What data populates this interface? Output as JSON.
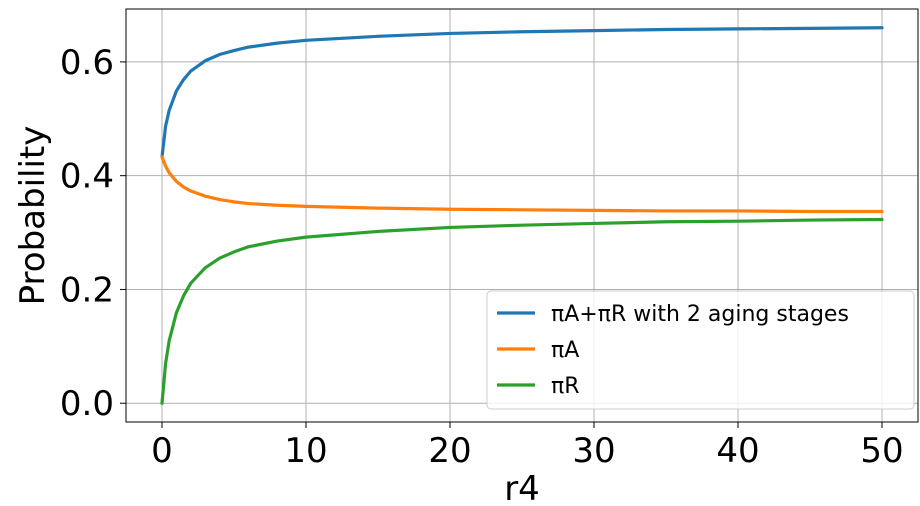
{
  "chart_data": {
    "type": "line",
    "xlabel": "r4",
    "ylabel": "Probability",
    "xlim": [
      -2.5,
      52.5
    ],
    "ylim": [
      -0.033,
      0.693
    ],
    "x_ticks": [
      0,
      10,
      20,
      30,
      40,
      50
    ],
    "x_tick_labels": [
      "0",
      "10",
      "20",
      "30",
      "40",
      "50"
    ],
    "y_ticks": [
      0.0,
      0.2,
      0.4,
      0.6
    ],
    "y_tick_labels": [
      "0.0",
      "0.2",
      "0.4",
      "0.6"
    ],
    "grid": true,
    "legend_position": "lower-right",
    "series": [
      {
        "name": "πA+πR with 2 aging stages",
        "color": "#1f77b4",
        "x": [
          0,
          0.25,
          0.5,
          1,
          1.5,
          2,
          3,
          4,
          5,
          6,
          8,
          10,
          15,
          20,
          25,
          30,
          35,
          40,
          45,
          50
        ],
        "y": [
          0.433,
          0.487,
          0.515,
          0.549,
          0.569,
          0.584,
          0.602,
          0.613,
          0.62,
          0.626,
          0.633,
          0.638,
          0.645,
          0.65,
          0.653,
          0.655,
          0.657,
          0.658,
          0.659,
          0.66
        ]
      },
      {
        "name": "πA",
        "color": "#ff7f0e",
        "x": [
          0,
          0.25,
          0.5,
          1,
          1.5,
          2,
          3,
          4,
          5,
          6,
          8,
          10,
          15,
          20,
          25,
          30,
          35,
          40,
          45,
          50
        ],
        "y": [
          0.433,
          0.417,
          0.405,
          0.39,
          0.38,
          0.373,
          0.364,
          0.358,
          0.354,
          0.351,
          0.348,
          0.346,
          0.343,
          0.341,
          0.34,
          0.339,
          0.338,
          0.338,
          0.337,
          0.337
        ]
      },
      {
        "name": "πR",
        "color": "#2ca02c",
        "x": [
          0,
          0.25,
          0.5,
          1,
          1.5,
          2,
          3,
          4,
          5,
          6,
          8,
          10,
          15,
          20,
          25,
          30,
          35,
          40,
          45,
          50
        ],
        "y": [
          0.0,
          0.07,
          0.11,
          0.159,
          0.189,
          0.211,
          0.238,
          0.255,
          0.266,
          0.275,
          0.285,
          0.292,
          0.302,
          0.309,
          0.313,
          0.316,
          0.319,
          0.32,
          0.322,
          0.323
        ]
      }
    ]
  }
}
